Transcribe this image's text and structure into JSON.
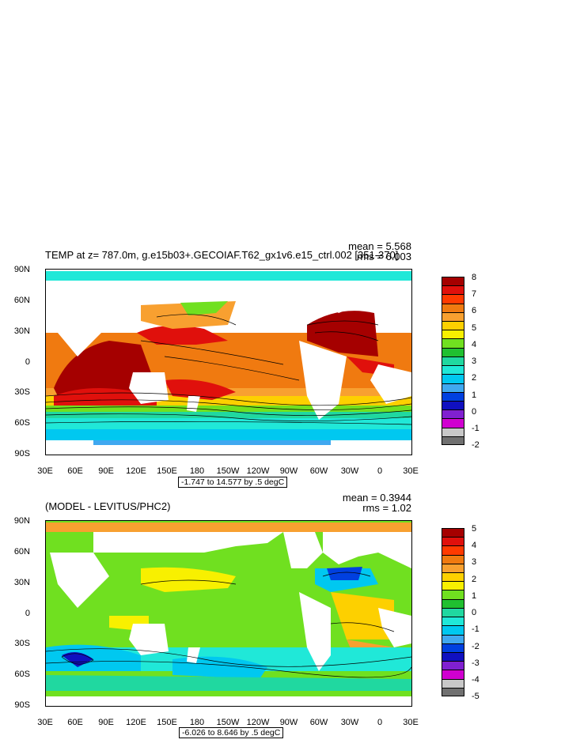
{
  "top": {
    "title": "TEMP at z= 787.0m, g.e15b03+.GECOIAF.T62_gx1v6.e15_ctrl.002 [351-370]",
    "mean": "mean = 5.568",
    "rms": "rms = 6.003",
    "contour_info": "-1.747 to 14.577 by .5 degC",
    "legend_labels": [
      "8",
      "7",
      "6",
      "5",
      "4",
      "3",
      "2",
      "1",
      "0",
      "-1",
      "-2"
    ],
    "legend_colors": [
      "#a50000",
      "#e0100c",
      "#ff3a00",
      "#f07a10",
      "#f8a030",
      "#fdd000",
      "#f8f000",
      "#70e020",
      "#20c030",
      "#20d8a0",
      "#20e8d8",
      "#00c8f0",
      "#40a8f0",
      "#0040e0",
      "#1010c0",
      "#8020d0",
      "#d000d0",
      "#c8c8c8",
      "#707070"
    ]
  },
  "bottom": {
    "title": "(MODEL - LEVITUS/PHC2)",
    "mean": "mean = 0.3944",
    "rms": "rms = 1.02",
    "contour_info": "-6.026 to 8.646 by .5 degC",
    "legend_labels": [
      "5",
      "4",
      "3",
      "2",
      "1",
      "0",
      "-1",
      "-2",
      "-3",
      "-4",
      "-5"
    ],
    "legend_colors": [
      "#a50000",
      "#e0100c",
      "#ff3a00",
      "#f07a10",
      "#f8a030",
      "#fdd000",
      "#f8f000",
      "#70e020",
      "#20c030",
      "#20d8a0",
      "#20e8d8",
      "#00c8f0",
      "#40a8f0",
      "#0040e0",
      "#1010c0",
      "#8020d0",
      "#d000d0",
      "#c8c8c8",
      "#707070"
    ]
  },
  "axes": {
    "lat_labels": [
      "90N",
      "60N",
      "30N",
      "0",
      "30S",
      "60S",
      "90S"
    ],
    "lon_labels": [
      "30E",
      "60E",
      "90E",
      "120E",
      "150E",
      "180",
      "150W",
      "120W",
      "90W",
      "60W",
      "30W",
      "0",
      "30E"
    ]
  },
  "colors": {
    "land": "#ffffff",
    "contour": "#000000"
  }
}
